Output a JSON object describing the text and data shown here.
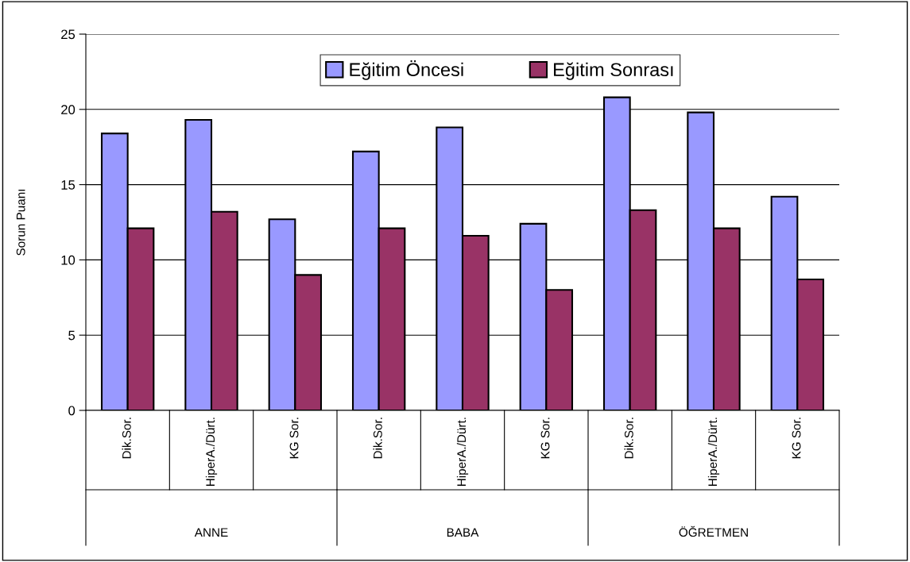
{
  "chart_data": {
    "type": "bar",
    "ylabel": "Sorun Puanı",
    "categories": [
      "Dik.Sor.",
      "HiperA./Dürt.",
      "KG Sor.",
      "Dik.Sor.",
      "HiperA./Dürt.",
      "KG Sor.",
      "Dik.Sor.",
      "HiperA./Dürt.",
      "KG Sor."
    ],
    "series": [
      {
        "name": "Eğitim Öncesi",
        "color": "#9999ff",
        "values": [
          18.4,
          19.3,
          12.7,
          17.2,
          18.8,
          12.4,
          20.8,
          19.8,
          14.2
        ]
      },
      {
        "name": "Eğitim Sonrası",
        "color": "#993366",
        "values": [
          12.1,
          13.2,
          9.0,
          12.1,
          11.6,
          8.0,
          13.3,
          12.1,
          8.7
        ]
      }
    ],
    "annotations": [
      "ANNE",
      "BABA",
      "ÖĞRETMEN"
    ],
    "ylim": [
      0,
      25
    ],
    "yticks": [
      0,
      5,
      10,
      15,
      20,
      25
    ],
    "grid": "y",
    "legend": "top"
  }
}
